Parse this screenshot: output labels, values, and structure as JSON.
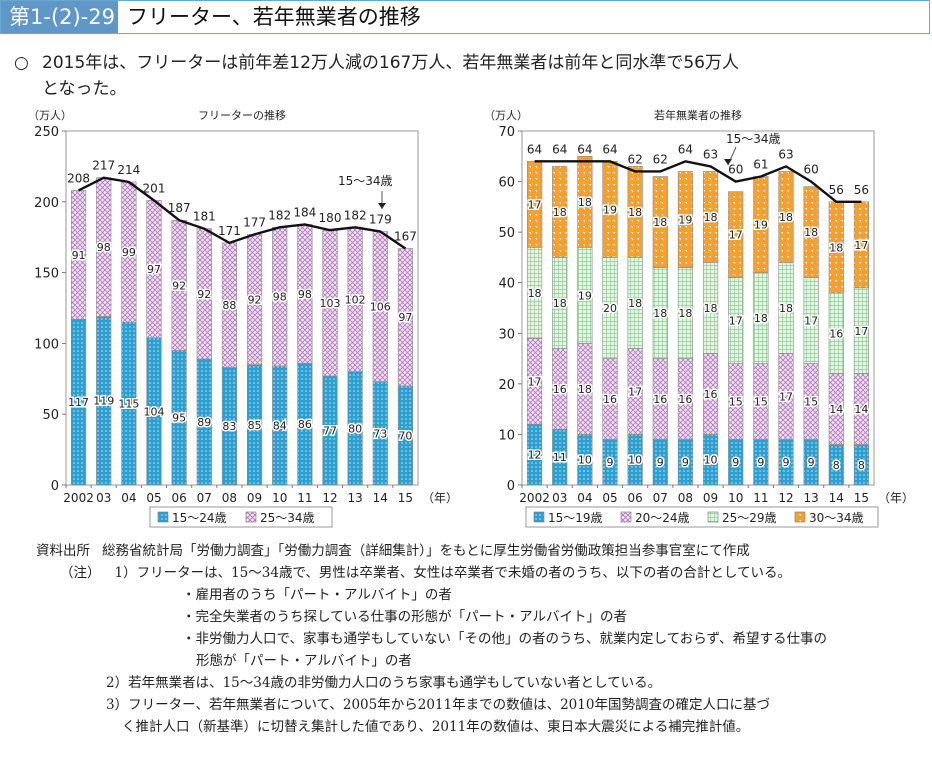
{
  "figure": {
    "number": "第1-(2)-29図",
    "title": "フリーター、若年無業者の推移"
  },
  "summary": {
    "bullet": "○",
    "line1": "2015年は、フリーターは前年差12万人減の167万人、若年無業者は前年と同水準で56万人",
    "line2": "となった。"
  },
  "colors": {
    "title_bg": "#5f97c9",
    "blue": "#2f9fd0",
    "pink": "#d9b3de",
    "green": "#a8d8a8",
    "orange": "#f7a030",
    "line": "#111111"
  },
  "chart_data": [
    {
      "type": "bar",
      "stacked": true,
      "title": "フリーターの推移",
      "ylabel": "（万人）",
      "xlabel": "（年）",
      "ylim": [
        0,
        250
      ],
      "yticks": [
        "0",
        "50",
        "100",
        "150",
        "200",
        "250"
      ],
      "categories": [
        "2002",
        "03",
        "04",
        "05",
        "06",
        "07",
        "08",
        "09",
        "10",
        "11",
        "12",
        "13",
        "14",
        "15"
      ],
      "series": [
        {
          "name": "15～24歳",
          "values": [
            117,
            119,
            115,
            104,
            95,
            89,
            83,
            85,
            84,
            86,
            77,
            80,
            73,
            70
          ]
        },
        {
          "name": "25～34歳",
          "values": [
            91,
            98,
            99,
            97,
            92,
            92,
            88,
            92,
            98,
            98,
            103,
            102,
            106,
            97
          ]
        }
      ],
      "total_line": {
        "name": "15～34歳",
        "values": [
          208,
          217,
          214,
          201,
          187,
          181,
          171,
          177,
          182,
          184,
          180,
          182,
          179,
          167
        ]
      },
      "annotation": "15～34歳",
      "legend": [
        "15～24歳",
        "25～34歳"
      ],
      "legend_position": "bottom"
    },
    {
      "type": "bar",
      "stacked": true,
      "title": "若年無業者の推移",
      "ylabel": "（万人）",
      "xlabel": "（年）",
      "ylim": [
        0,
        70
      ],
      "yticks": [
        "0",
        "10",
        "20",
        "30",
        "40",
        "50",
        "60",
        "70"
      ],
      "categories": [
        "2002",
        "03",
        "04",
        "05",
        "06",
        "07",
        "08",
        "09",
        "10",
        "11",
        "12",
        "13",
        "14",
        "15"
      ],
      "series": [
        {
          "name": "15～19歳",
          "values": [
            12,
            11,
            10,
            9,
            10,
            9,
            9,
            10,
            9,
            9,
            9,
            9,
            8,
            8
          ]
        },
        {
          "name": "20～24歳",
          "values": [
            17,
            16,
            18,
            16,
            17,
            16,
            16,
            16,
            15,
            15,
            17,
            15,
            14,
            14
          ]
        },
        {
          "name": "25～29歳",
          "values": [
            18,
            18,
            19,
            20,
            18,
            18,
            18,
            18,
            17,
            18,
            18,
            17,
            16,
            17
          ]
        },
        {
          "name": "30～34歳",
          "values": [
            17,
            18,
            18,
            19,
            18,
            18,
            19,
            18,
            17,
            19,
            18,
            18,
            18,
            17
          ]
        }
      ],
      "total_line": {
        "name": "15～34歳",
        "values": [
          64,
          64,
          64,
          64,
          62,
          62,
          64,
          63,
          60,
          61,
          63,
          60,
          56,
          56
        ]
      },
      "annotation": "15～34歳",
      "legend": [
        "15～19歳",
        "20～24歳",
        "25～29歳",
        "30～34歳"
      ],
      "legend_position": "bottom"
    }
  ],
  "notes": {
    "source_label": "資料出所",
    "source_text": "総務省統計局「労働力調査」「労働力調査（詳細集計）」をもとに厚生労働省労働政策担当参事官室にて作成",
    "note_label": "（注）",
    "n1": "1）フリーターは、15～34歳で、男性は卒業者、女性は卒業者で未婚の者のうち、以下の者の合計としている。",
    "n1a": "・雇用者のうち「パート・アルバイト」の者",
    "n1b": "・完全失業者のうち探している仕事の形態が「パート・アルバイト」の者",
    "n1c": "・非労働力人口で、家事も通学もしていない「その他」の者のうち、就業内定しておらず、希望する仕事の",
    "n1c2": "形態が「パート・アルバイト」の者",
    "n2": "2）若年無業者は、15～34歳の非労働力人口のうち家事も通学もしていない者としている。",
    "n3": "3）フリーター、若年無業者について、2005年から2011年までの数値は、2010年国勢調査の確定人口に基づ",
    "n3b": "く推計人口（新基準）に切替え集計した値であり、2011年の数値は、東日本大震災による補完推計値。"
  }
}
